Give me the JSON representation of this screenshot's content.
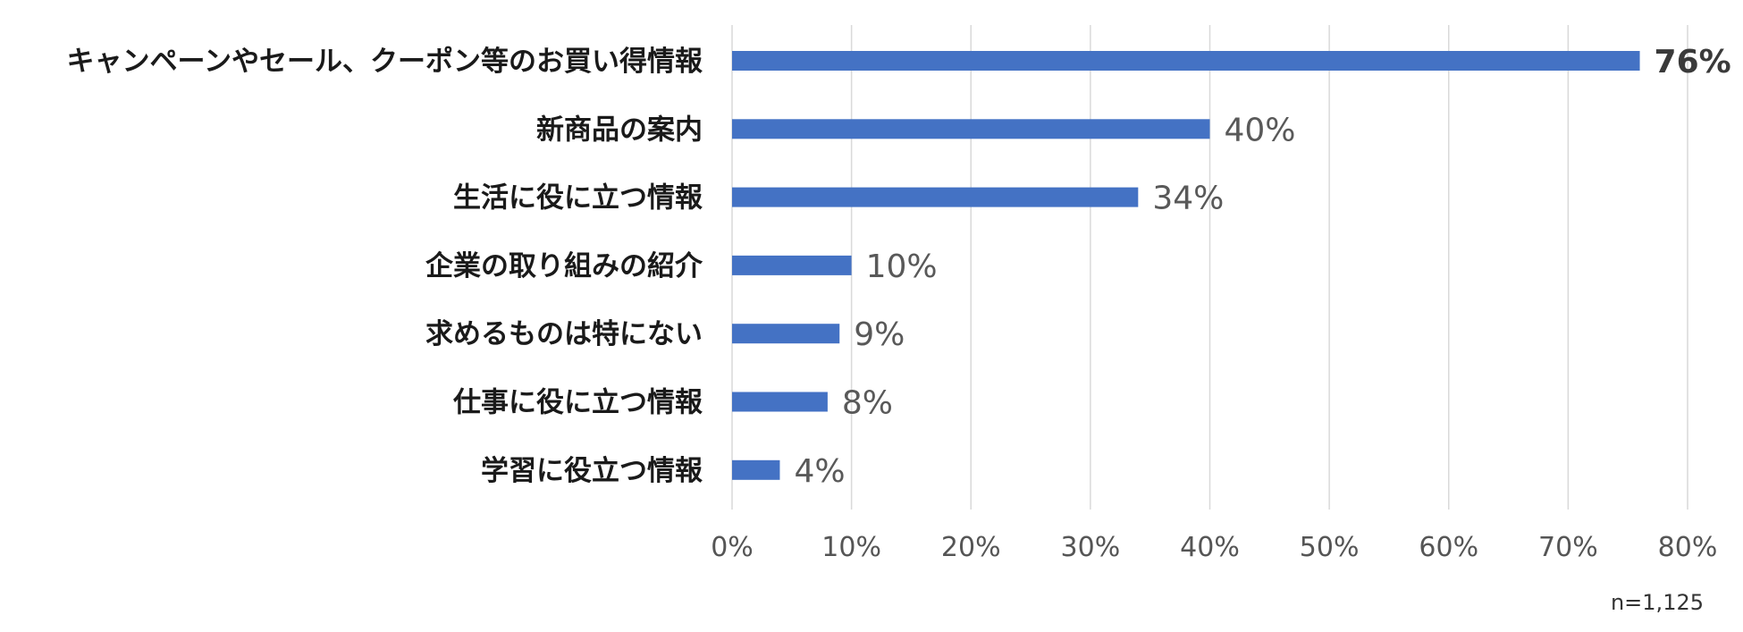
{
  "chart_data": {
    "type": "bar",
    "orientation": "horizontal",
    "categories": [
      "キャンペーンやセール、クーポン等のお買い得情報",
      "新商品の案内",
      "生活に役に立つ情報",
      "企業の取り組みの紹介",
      "求めるものは特にない",
      "仕事に役に立つ情報",
      "学習に役立つ情報"
    ],
    "values": [
      76,
      40,
      34,
      10,
      9,
      8,
      4
    ],
    "value_labels": [
      "76%",
      "40%",
      "34%",
      "10%",
      "9%",
      "8%",
      "4%"
    ],
    "emphasized_index": 0,
    "xlim": [
      0,
      80
    ],
    "x_ticks": [
      0,
      10,
      20,
      30,
      40,
      50,
      60,
      70,
      80
    ],
    "x_tick_labels": [
      "0%",
      "10%",
      "20%",
      "30%",
      "40%",
      "50%",
      "60%",
      "70%",
      "80%"
    ],
    "grid": true,
    "legend": "none",
    "bar_color": "#4472C4",
    "grid_color": "#D9D9D9",
    "note": "n=1,125"
  }
}
